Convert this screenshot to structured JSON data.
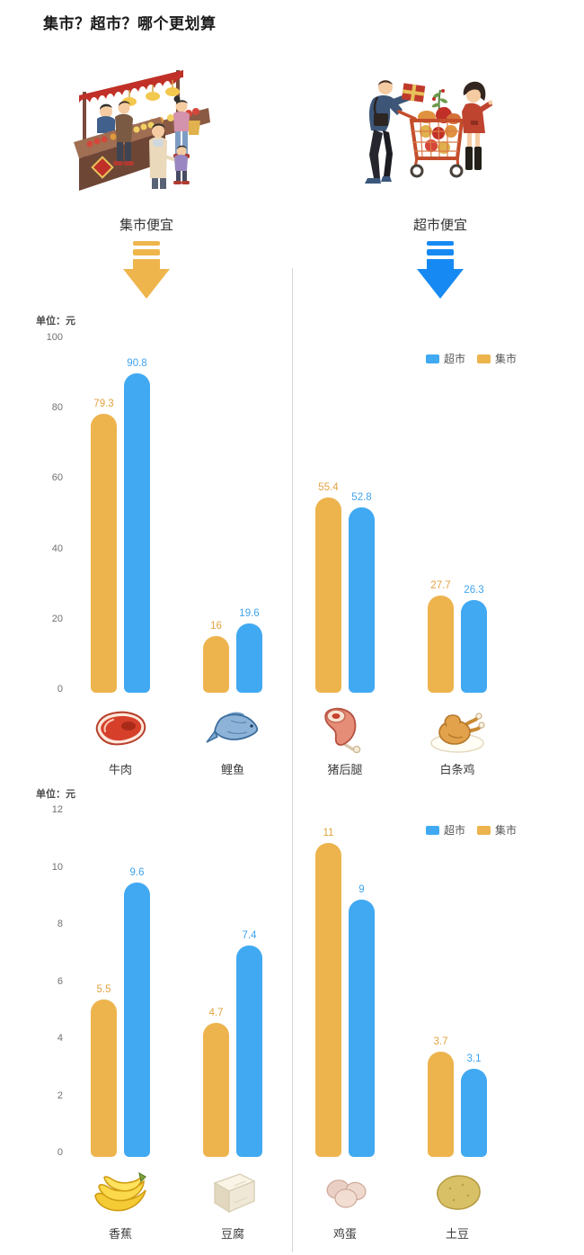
{
  "page_title": "集市？超市？哪个更划算",
  "sections": {
    "market": {
      "caption": "集市便宜"
    },
    "supermarket": {
      "caption": "超市便宜"
    }
  },
  "colors": {
    "market_bar": "#EDB44E",
    "supermarket_bar": "#41A9F2",
    "market_arrow": "#EFB54D",
    "supermarket_arrow": "#1789F3",
    "market_label": "#E2A341",
    "supermarket_label": "#3FA3EF"
  },
  "chart_data": [
    {
      "type": "bar",
      "ylabel": "单位：元",
      "categories": [
        "牛肉",
        "鲤鱼",
        "猪后腿",
        "白条鸡"
      ],
      "category_icons": [
        "beef-icon",
        "carp-icon",
        "pork-leg-icon",
        "chicken-icon"
      ],
      "series": [
        {
          "key": "market",
          "name": "集市",
          "color": "#EDB44E",
          "label_color": "#E2A341",
          "values": [
            79.3,
            16,
            55.4,
            27.7
          ]
        },
        {
          "key": "supermarket",
          "name": "超市",
          "color": "#41A9F2",
          "label_color": "#3FA3EF",
          "values": [
            90.8,
            19.6,
            52.8,
            26.3
          ]
        }
      ],
      "ylim": [
        0,
        100
      ],
      "yticks": [
        100,
        80,
        60,
        40,
        20,
        0
      ],
      "legend_position": "top-right",
      "grid": false
    },
    {
      "type": "bar",
      "ylabel": "单位：元",
      "categories": [
        "香蕉",
        "豆腐",
        "鸡蛋",
        "土豆"
      ],
      "category_icons": [
        "banana-icon",
        "tofu-icon",
        "eggs-icon",
        "potato-icon"
      ],
      "series": [
        {
          "key": "market",
          "name": "集市",
          "color": "#EDB44E",
          "label_color": "#E2A341",
          "values": [
            5.5,
            4.7,
            11,
            3.7
          ]
        },
        {
          "key": "supermarket",
          "name": "超市",
          "color": "#41A9F2",
          "label_color": "#3FA3EF",
          "values": [
            9.6,
            7.4,
            9,
            3.1
          ]
        }
      ],
      "ylim": [
        0,
        12
      ],
      "yticks": [
        12,
        10,
        8,
        6,
        4,
        2,
        0
      ],
      "legend_position": "top-right",
      "grid": false
    }
  ]
}
